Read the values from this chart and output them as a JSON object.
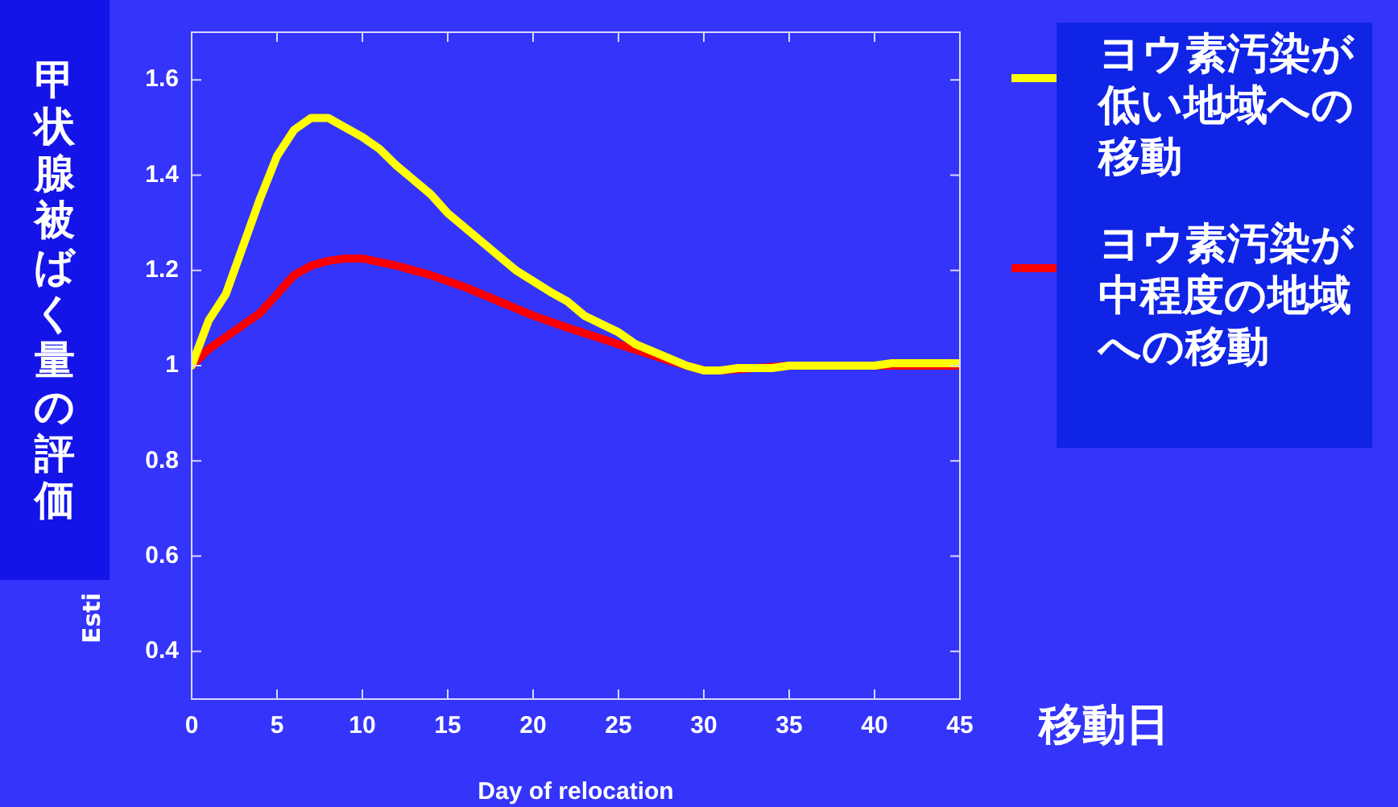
{
  "chart_data": {
    "type": "line",
    "xlabel": "Day of relocation",
    "ylabel": "甲状腺被ばく量の評価",
    "xlim": [
      0,
      45
    ],
    "xticks": [
      0,
      5,
      10,
      15,
      20,
      25,
      30,
      35,
      40,
      45
    ],
    "ylim": [
      0.3,
      1.7
    ],
    "yticks": [
      0.4,
      0.6,
      0.8,
      1,
      1.2,
      1.4,
      1.6
    ],
    "grid": false,
    "legend": "right",
    "marker": "none",
    "line_style": "solid",
    "annotations": [
      "Esti",
      "移動日"
    ],
    "series": [
      {
        "name": "ヨウ素汚染が低い地域への移動",
        "color": "#ffff00",
        "x": [
          0,
          1,
          2,
          4,
          5,
          6,
          7,
          8,
          9,
          10,
          11,
          12,
          13,
          14,
          15,
          17,
          19,
          21,
          22,
          23,
          25,
          26,
          28,
          29,
          30,
          31,
          32,
          34,
          35,
          40,
          41,
          45
        ],
        "values": [
          1.0,
          1.095,
          1.15,
          1.35,
          1.44,
          1.495,
          1.52,
          1.52,
          1.5,
          1.48,
          1.455,
          1.42,
          1.39,
          1.36,
          1.32,
          1.26,
          1.2,
          1.155,
          1.135,
          1.105,
          1.07,
          1.045,
          1.015,
          1.0,
          0.99,
          0.99,
          0.995,
          0.995,
          1.0,
          1.0,
          1.005,
          1.005
        ]
      },
      {
        "name": "ヨウ素汚染が中程度の地域への移動",
        "color": "#ff0000",
        "x": [
          0,
          1,
          2,
          4,
          5,
          6,
          7,
          8,
          9,
          10,
          12,
          14,
          16,
          18,
          20,
          22,
          25,
          28,
          29,
          30,
          31,
          35,
          45
        ],
        "values": [
          1.0,
          1.035,
          1.06,
          1.11,
          1.15,
          1.19,
          1.21,
          1.22,
          1.225,
          1.225,
          1.21,
          1.19,
          1.165,
          1.135,
          1.105,
          1.08,
          1.045,
          1.01,
          1.0,
          0.99,
          0.99,
          1.0,
          1.0
        ]
      }
    ]
  }
}
